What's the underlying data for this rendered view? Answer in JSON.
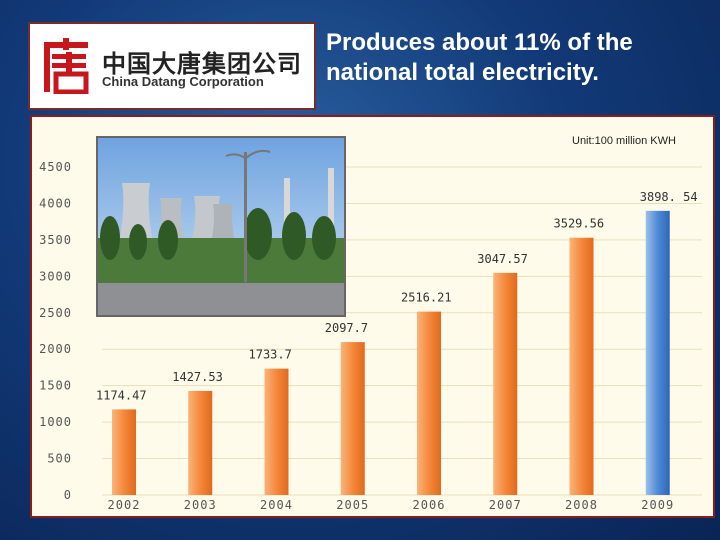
{
  "logo": {
    "chinese_name": "中国大唐集团公司",
    "english_name": "China Datang Corporation",
    "mark_icon": "datang-logo-icon",
    "brand_color": "#c8161d"
  },
  "slide": {
    "title": "Produces about 11% of the national total electricity."
  },
  "photo": {
    "icon": "power-plant-photo"
  },
  "chart_data": {
    "type": "bar",
    "unit_label": "Unit:100 million KWH",
    "categories": [
      "2002",
      "2003",
      "2004",
      "2005",
      "2006",
      "2007",
      "2008",
      "2009"
    ],
    "values": [
      1174.47,
      1427.53,
      1733.7,
      2097.7,
      2516.21,
      3047.57,
      3529.56,
      3898.54
    ],
    "value_labels": [
      "1174.47",
      "1427.53",
      "1733.7",
      "2097.7",
      "2516.21",
      "3047.57",
      "3529.56",
      "3898. 54"
    ],
    "yticks": [
      "0",
      "500",
      "1000",
      "1500",
      "2000",
      "2500",
      "3000",
      "3500",
      "4000",
      "4500"
    ],
    "ylim": [
      0,
      4500
    ],
    "grid": true,
    "colors": {
      "bar": "#f5883a",
      "highlight_bar": "#4f8ad6",
      "highlight_index": 7,
      "tick": "#555555"
    }
  }
}
